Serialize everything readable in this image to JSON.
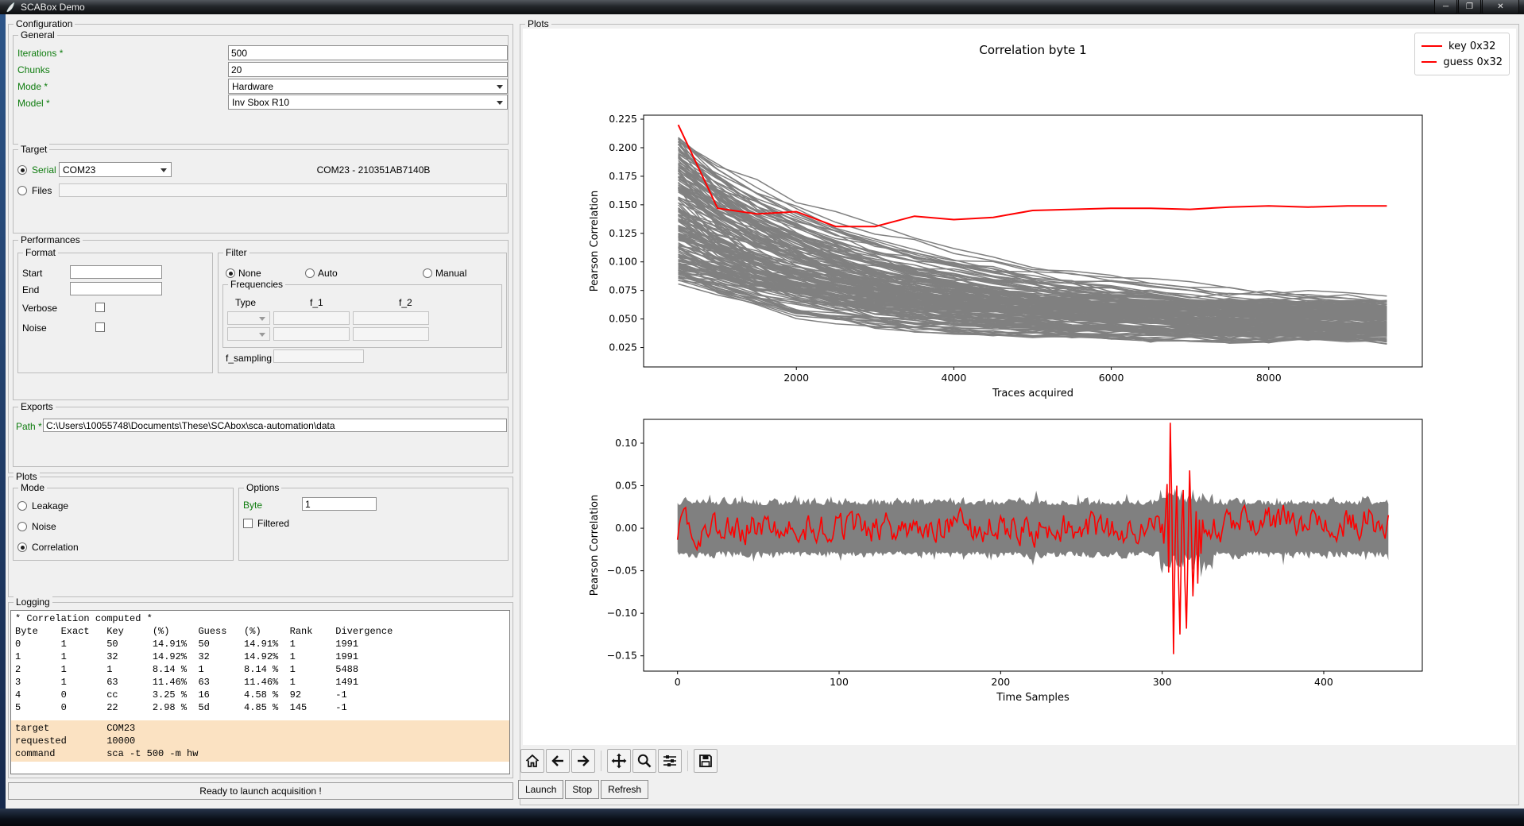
{
  "window": {
    "title": "SCABox Demo"
  },
  "titlebar_icons": {
    "minimize": "─",
    "restore": "❐",
    "close": "✕"
  },
  "config": {
    "label": "Configuration",
    "general": {
      "label": "General",
      "iterations_label": "Iterations *",
      "iterations_value": "500",
      "chunks_label": "Chunks",
      "chunks_value": "20",
      "mode_label": "Mode *",
      "mode_value": "Hardware",
      "model_label": "Model *",
      "model_value": "Inv Sbox R10"
    },
    "target": {
      "label": "Target",
      "serial_label": "Serial",
      "serial_port": "COM23",
      "serial_info": "COM23 - 210351AB7140B",
      "files_label": "Files",
      "files_value": ""
    },
    "performances": {
      "label": "Performances",
      "format": {
        "label": "Format",
        "start_label": "Start",
        "start_value": "",
        "end_label": "End",
        "end_value": "",
        "verbose_label": "Verbose",
        "noise_label": "Noise"
      },
      "filter": {
        "label": "Filter",
        "none_label": "None",
        "auto_label": "Auto",
        "manual_label": "Manual",
        "selected": "None",
        "frequencies": {
          "label": "Frequencies",
          "col_type": "Type",
          "col_f1": "f_1",
          "col_f2": "f_2"
        },
        "f_sampling_label": "f_sampling",
        "f_sampling_value": ""
      }
    },
    "exports": {
      "label": "Exports",
      "path_label": "Path *",
      "path_value": "C:\\Users\\10055748\\Documents\\These\\SCAbox\\sca-automation\\data"
    },
    "plots": {
      "label": "Plots",
      "mode": {
        "label": "Mode",
        "leakage_label": "Leakage",
        "noise_label": "Noise",
        "correlation_label": "Correlation",
        "selected": "Correlation"
      },
      "options": {
        "label": "Options",
        "byte_label": "Byte",
        "byte_value": "1",
        "filtered_label": "Filtered",
        "filtered_checked": false
      }
    },
    "logging": {
      "label": "Logging",
      "log_text": "* Correlation computed *\nByte    Exact   Key     (%)     Guess   (%)     Rank    Divergence\n0       1       50      14.91%  50      14.91%  1       1991\n1       1       32      14.92%  32      14.92%  1       1991\n2       1       1       8.14 %  1       8.14 %  1       5488\n3       1       63      11.46%  63      11.46%  1       1491\n4       0       cc      3.25 %  16      4.58 %  92      -1\n5       0       22      2.98 %  5d      4.85 %  145     -1",
      "highlight_text": "target          COM23\nrequested       10000\ncommand         sca -t 500 -m hw"
    },
    "status": "Ready to launch acquisition !"
  },
  "plots_panel": {
    "label": "Plots",
    "launch_label": "Launch",
    "stop_label": "Stop",
    "refresh_label": "Refresh"
  },
  "chart_data": [
    {
      "type": "line",
      "title": "Correlation byte 1",
      "xlabel": "Traces acquired",
      "ylabel": "Pearson Correlation",
      "xlim": [
        60,
        9950
      ],
      "ylim": [
        0.008,
        0.2285
      ],
      "xticks": [
        2000,
        4000,
        6000,
        8000
      ],
      "yticks": [
        0.025,
        0.05,
        0.075,
        0.1,
        0.125,
        0.15,
        0.175,
        0.2,
        0.225
      ],
      "grid": false,
      "legend": {
        "position": "upper-right",
        "entries": [
          {
            "label": "key 0x32",
            "color": "#ff0000"
          },
          {
            "label": "guess 0x32",
            "color": "#ff0000"
          }
        ]
      },
      "series": [
        {
          "name": "key 0x32 / guess 0x32 (overlapping)",
          "color": "#ff0000",
          "x": [
            500,
            1000,
            1500,
            2000,
            2500,
            3000,
            3500,
            4000,
            4500,
            5000,
            5500,
            6000,
            6500,
            7000,
            7500,
            8000,
            8500,
            9000,
            9500
          ],
          "y": [
            0.22,
            0.147,
            0.142,
            0.144,
            0.131,
            0.131,
            0.14,
            0.137,
            0.139,
            0.145,
            0.146,
            0.147,
            0.147,
            0.146,
            0.148,
            0.149,
            0.148,
            0.149,
            0.149
          ]
        }
      ],
      "background_traces": {
        "description": "wrong key hypotheses, decaying correlation",
        "count": 180,
        "color": "#808080",
        "x_start": 500,
        "x_end": 9500,
        "x_step": 500,
        "start_range": [
          0.082,
          0.207
        ],
        "end_range": [
          0.03,
          0.062
        ]
      }
    },
    {
      "type": "line",
      "title": "",
      "xlabel": "Time Samples",
      "ylabel": "Pearson Correlation",
      "xlim": [
        -21,
        461
      ],
      "ylim": [
        -0.168,
        0.128
      ],
      "xticks": [
        0,
        100,
        200,
        300,
        400
      ],
      "yticks": [
        -0.15,
        -0.1,
        -0.05,
        0,
        0.05,
        0.1
      ],
      "grid": false,
      "band": {
        "color": "#808080",
        "x_start": 0,
        "x_end": 440,
        "upper_level": 0.027,
        "lower_level": -0.027,
        "jitter": 0.009,
        "description": "envelope of wrong-guess correlation traces"
      },
      "series": [
        {
          "name": "key/guess 0x32 correlation trace",
          "color": "#ff0000",
          "baseline_sigma": 0.012,
          "burst": {
            "x_start": 300,
            "values": [
              0.005,
              -0.018,
              0.012,
              0.052,
              -0.052,
              0.124,
              0.02,
              -0.148,
              -0.02,
              0.05,
              -0.05,
              -0.125,
              0.0,
              0.045,
              -0.06,
              -0.118,
              -0.02,
              0.068,
              0.0,
              -0.08,
              -0.03,
              0.02,
              -0.065,
              0.01,
              -0.03,
              0.01,
              -0.005
            ],
            "peak": 0.124,
            "trough": -0.148
          }
        }
      ]
    }
  ]
}
